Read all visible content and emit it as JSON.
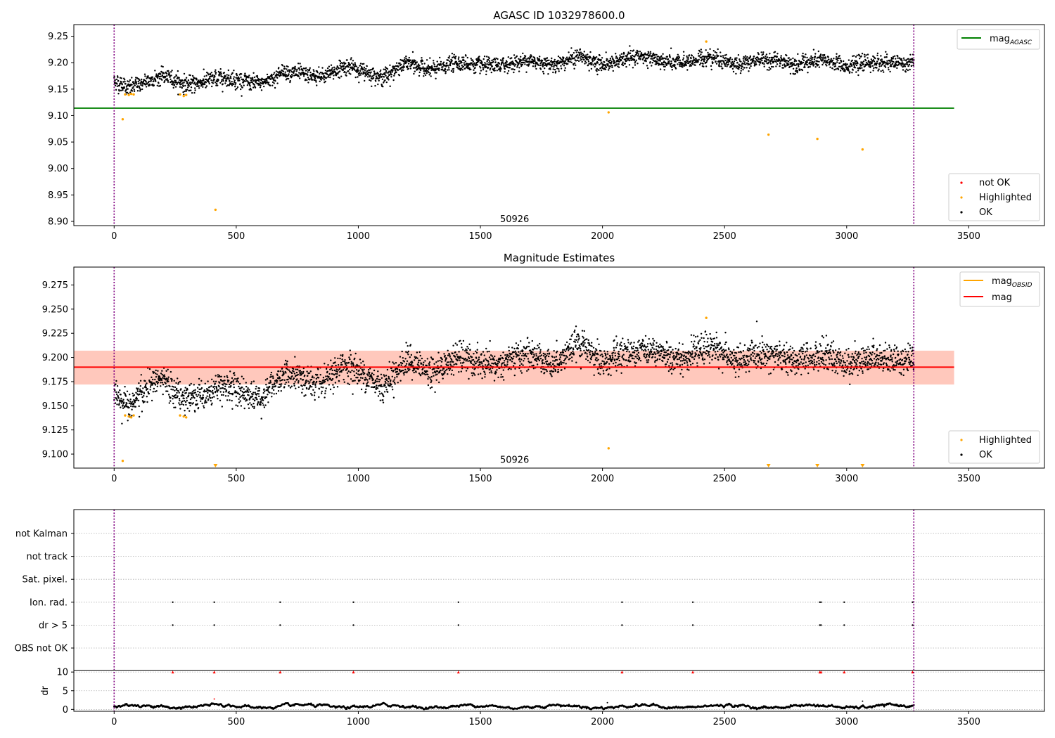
{
  "chart_data": [
    {
      "type": "scatter",
      "title": "AGASC ID 1032978600.0",
      "xlabel": "",
      "ylabel": "",
      "xlim": [
        -165,
        3810
      ],
      "ylim": [
        8.892,
        9.272
      ],
      "x_ticks": [
        0,
        500,
        1000,
        1500,
        2000,
        2500,
        3000,
        3500
      ],
      "y_ticks": [
        8.9,
        8.95,
        9.0,
        9.05,
        9.1,
        9.15,
        9.2,
        9.25
      ],
      "grid": false,
      "legend_upper": "top-right",
      "legend_lower": "bottom-right",
      "lines": [
        {
          "name": "mag_AGASC",
          "label_main": "mag",
          "label_sub": "AGASC",
          "y": 9.114,
          "x_range": [
            -165,
            3440
          ],
          "color": "#008000"
        }
      ],
      "vlines": [
        0,
        3275
      ],
      "annotation": {
        "text": "50926",
        "x": 1640,
        "y": 8.904
      },
      "ok_series": {
        "name": "OK",
        "color": "#000000",
        "x_range": [
          0,
          3275
        ],
        "n_points": 3275,
        "trend": [
          [
            0,
            9.165
          ],
          [
            60,
            9.152
          ],
          [
            200,
            9.176
          ],
          [
            300,
            9.158
          ],
          [
            450,
            9.172
          ],
          [
            600,
            9.16
          ],
          [
            700,
            9.184
          ],
          [
            850,
            9.172
          ],
          [
            950,
            9.194
          ],
          [
            1100,
            9.172
          ],
          [
            1200,
            9.2
          ],
          [
            1300,
            9.185
          ],
          [
            1400,
            9.201
          ],
          [
            1550,
            9.192
          ],
          [
            1700,
            9.205
          ],
          [
            1800,
            9.196
          ],
          [
            1900,
            9.213
          ],
          [
            2000,
            9.196
          ],
          [
            2150,
            9.212
          ],
          [
            2300,
            9.198
          ],
          [
            2450,
            9.212
          ],
          [
            2550,
            9.195
          ],
          [
            2650,
            9.207
          ],
          [
            2800,
            9.197
          ],
          [
            2900,
            9.204
          ],
          [
            3000,
            9.195
          ],
          [
            3100,
            9.2
          ],
          [
            3275,
            9.198
          ]
        ]
      },
      "highlighted_series": {
        "name": "Highlighted",
        "color": "#ffa500",
        "points": [
          [
            35,
            9.093
          ],
          [
            45,
            9.14
          ],
          [
            60,
            9.139
          ],
          [
            70,
            9.141
          ],
          [
            80,
            9.14
          ],
          [
            270,
            9.14
          ],
          [
            285,
            9.137
          ],
          [
            295,
            9.139
          ],
          [
            415,
            8.922
          ],
          [
            2025,
            9.106
          ],
          [
            2425,
            9.24
          ],
          [
            2680,
            9.064
          ],
          [
            2880,
            9.056
          ],
          [
            3065,
            9.036
          ]
        ]
      },
      "not_ok_series": {
        "name": "not OK",
        "color": "#ff0000",
        "points": []
      },
      "legend_labels": [
        "not OK",
        "Highlighted",
        "OK"
      ]
    },
    {
      "type": "scatter",
      "title": "Magnitude Estimates",
      "xlabel": "",
      "ylabel": "",
      "xlim": [
        -165,
        3810
      ],
      "ylim": [
        9.0855,
        9.2935
      ],
      "x_ticks": [
        0,
        500,
        1000,
        1500,
        2000,
        2500,
        3000,
        3500
      ],
      "y_ticks": [
        9.1,
        9.125,
        9.15,
        9.175,
        9.2,
        9.225,
        9.25,
        9.275
      ],
      "grid": false,
      "legend_upper": "top-right",
      "legend_lower": "bottom-right",
      "lines": [
        {
          "name": "mag",
          "y": 9.19,
          "x_range": [
            -165,
            3440
          ],
          "color": "#ff0000"
        }
      ],
      "legend_lines": [
        {
          "label_main": "mag",
          "label_sub": "OBSID",
          "color": "#ffa500"
        },
        {
          "label_main": "mag",
          "label_sub": "",
          "color": "#ff0000"
        }
      ],
      "bands": [
        {
          "y": [
            9.172,
            9.207
          ],
          "x_range": [
            -165,
            3440
          ],
          "color": "#ffc0cb"
        },
        {
          "y": [
            9.172,
            9.207
          ],
          "x_range": [
            -165,
            3440
          ],
          "color": "#ffa07a"
        }
      ],
      "vlines": [
        0,
        3275
      ],
      "annotation": {
        "text": "50926",
        "x": 1640,
        "y": 9.094
      },
      "ok_series": {
        "name": "OK",
        "color": "#000000",
        "x_range": [
          0,
          3275
        ],
        "n_points": 3275,
        "trend": [
          [
            0,
            9.165
          ],
          [
            60,
            9.15
          ],
          [
            180,
            9.178
          ],
          [
            300,
            9.155
          ],
          [
            450,
            9.172
          ],
          [
            600,
            9.158
          ],
          [
            700,
            9.184
          ],
          [
            850,
            9.17
          ],
          [
            950,
            9.193
          ],
          [
            1100,
            9.17
          ],
          [
            1200,
            9.197
          ],
          [
            1300,
            9.184
          ],
          [
            1400,
            9.2
          ],
          [
            1550,
            9.19
          ],
          [
            1700,
            9.204
          ],
          [
            1800,
            9.194
          ],
          [
            1900,
            9.215
          ],
          [
            2000,
            9.195
          ],
          [
            2150,
            9.21
          ],
          [
            2300,
            9.197
          ],
          [
            2450,
            9.212
          ],
          [
            2550,
            9.194
          ],
          [
            2650,
            9.206
          ],
          [
            2800,
            9.195
          ],
          [
            2900,
            9.203
          ],
          [
            3000,
            9.194
          ],
          [
            3100,
            9.2
          ],
          [
            3275,
            9.197
          ]
        ]
      },
      "highlighted_series": {
        "name": "Highlighted",
        "color": "#ffa500",
        "points": [
          [
            35,
            9.093
          ],
          [
            45,
            9.14
          ],
          [
            60,
            9.139
          ],
          [
            70,
            9.138
          ],
          [
            80,
            9.14
          ],
          [
            270,
            9.14
          ],
          [
            285,
            9.139
          ],
          [
            295,
            9.138
          ],
          [
            2025,
            9.106
          ],
          [
            2425,
            9.241
          ]
        ]
      },
      "out_of_range_markers": {
        "color": "#ffa500",
        "x": [
          415,
          2680,
          2880,
          3065
        ]
      },
      "legend_labels": [
        "Highlighted",
        "OK"
      ]
    },
    {
      "type": "scatter",
      "title": "",
      "xlim": [
        -165,
        3810
      ],
      "x_ticks": [
        0,
        500,
        1000,
        1500,
        2000,
        2500,
        3000,
        3500
      ],
      "vlines": [
        0,
        3275
      ],
      "flag_rows": [
        "not Kalman",
        "not track",
        "Sat. pixel.",
        "Ion. rad.",
        "dr > 5",
        "OBS not OK"
      ],
      "flag_events": {
        "Ion. rad.": [
          240,
          410,
          680,
          980,
          1410,
          2080,
          2370,
          2890,
          2895,
          2990,
          3270
        ],
        "dr > 5": [
          240,
          410,
          680,
          980,
          1410,
          2080,
          2370,
          2890,
          2895,
          2990,
          3270
        ]
      },
      "dr_panel": {
        "ylabel": "dr",
        "ylim": [
          -0.5,
          10.5
        ],
        "y_ticks": [
          0,
          5,
          10
        ],
        "red_markers_x": [
          240,
          410,
          680,
          980,
          1410,
          2080,
          2370,
          2890,
          2895,
          2990,
          3270
        ],
        "red_markers_y": 10,
        "extra_points": [
          [
            410,
            2.8
          ],
          [
            2020,
            1.8
          ],
          [
            3065,
            2.2
          ]
        ],
        "baseline": 0.8
      }
    }
  ]
}
